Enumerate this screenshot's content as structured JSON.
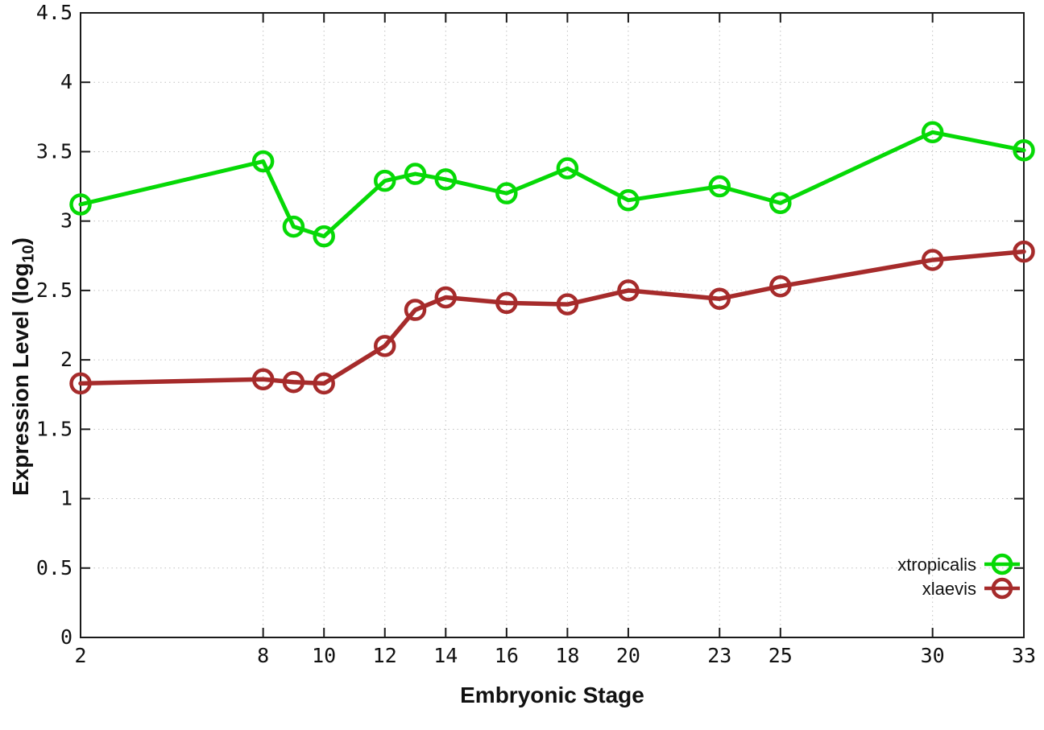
{
  "chart_data": {
    "type": "line",
    "title": "",
    "xlabel": "Embryonic Stage",
    "ylabel": "Expression Level (log10)",
    "ylabel_parts": {
      "prefix": "Expression Level (log",
      "sub": "10",
      "suffix": ")"
    },
    "x": [
      2,
      8,
      9,
      10,
      12,
      13,
      14,
      16,
      18,
      20,
      23,
      25,
      30,
      33
    ],
    "series": [
      {
        "name": "xtropicalis",
        "color": "#06d906",
        "line_width": 5,
        "values": [
          3.12,
          3.43,
          2.96,
          2.89,
          3.29,
          3.34,
          3.3,
          3.2,
          3.38,
          3.15,
          3.25,
          3.13,
          3.64,
          3.51
        ]
      },
      {
        "name": "xlaevis",
        "color": "#a62b2b",
        "line_width": 5.5,
        "values": [
          1.83,
          1.86,
          1.84,
          1.83,
          2.1,
          2.36,
          2.45,
          2.41,
          2.4,
          2.5,
          2.44,
          2.53,
          2.72,
          2.78
        ]
      }
    ],
    "xlim": [
      2,
      33
    ],
    "ylim": [
      0,
      4.5
    ],
    "xtick_values": [
      2,
      8,
      10,
      12,
      14,
      16,
      18,
      20,
      23,
      25,
      30,
      33
    ],
    "xtick_labels": [
      "2",
      "8",
      "10",
      "12",
      "14",
      "16",
      "18",
      "20",
      "23",
      "25",
      "30",
      "33"
    ],
    "ytick_values": [
      0,
      0.5,
      1,
      1.5,
      2,
      2.5,
      3,
      3.5,
      4,
      4.5
    ],
    "ytick_labels": [
      "0",
      "0.5",
      "1",
      "1.5",
      "2",
      "2.5",
      "3",
      "3.5",
      "4",
      "4.5"
    ],
    "grid": true,
    "legend_position": "bottom-right",
    "marker": "open-circle",
    "colors": {
      "border": "#1a1a1a",
      "grid": "#c0c0c0",
      "text": "#111111"
    }
  }
}
